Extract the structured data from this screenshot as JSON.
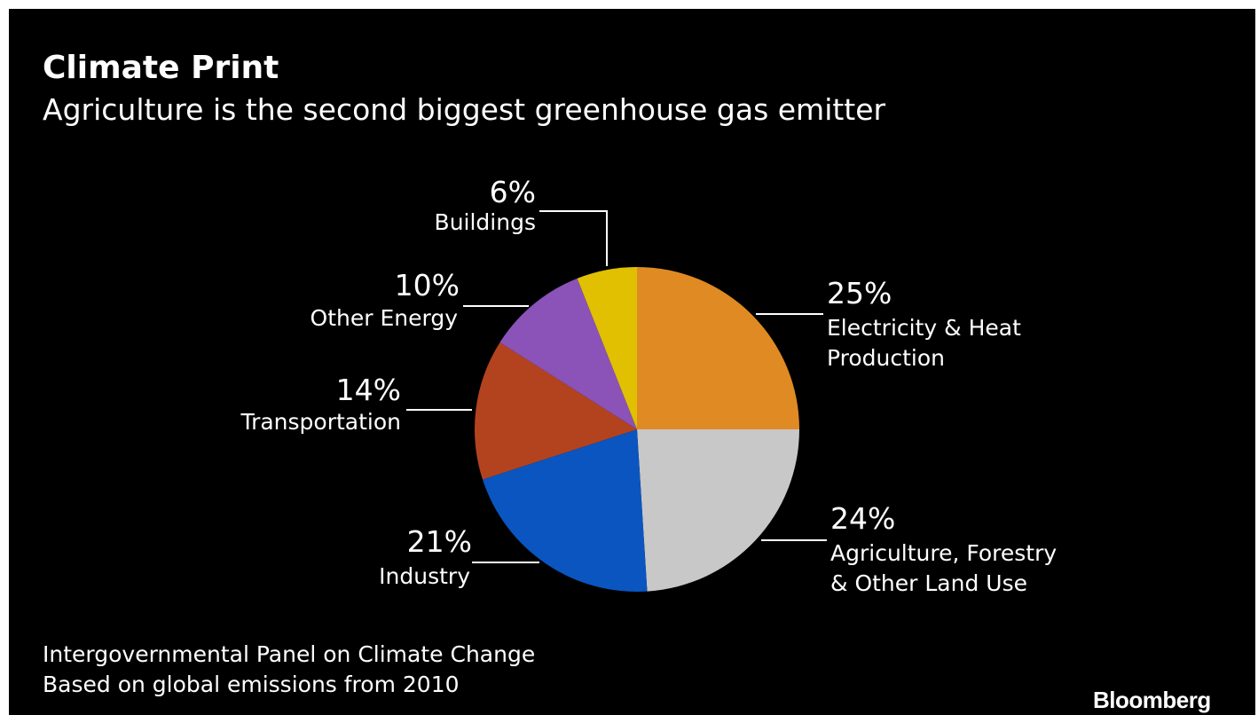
{
  "title": "Climate Print",
  "subtitle": "Agriculture is the second biggest greenhouse gas emitter",
  "source_lines": [
    "Intergovernmental Panel on Climate Change",
    "Based on global emissions from 2010"
  ],
  "brand": "Bloomberg",
  "colors": {
    "background": "#000000",
    "text": "#ffffff",
    "leader_lines": "#ffffff"
  },
  "chart_data": {
    "type": "pie",
    "title": "Climate Print",
    "subtitle": "Agriculture is the second biggest greenhouse gas emitter",
    "start": "12 o'clock",
    "direction": "clockwise",
    "unit": "%",
    "slices": [
      {
        "name": "Electricity & Heat Production",
        "label_lines": [
          "Electricity & Heat",
          "Production"
        ],
        "value": 25,
        "pct_label": "25%",
        "color": "#e08a24"
      },
      {
        "name": "Agriculture, Forestry & Other Land Use",
        "label_lines": [
          "Agriculture, Forestry",
          "& Other Land Use"
        ],
        "value": 24,
        "pct_label": "24%",
        "color": "#c8c8c8"
      },
      {
        "name": "Industry",
        "label_lines": [
          "Industry"
        ],
        "value": 21,
        "pct_label": "21%",
        "color": "#0a55c0"
      },
      {
        "name": "Transportation",
        "label_lines": [
          "Transportation"
        ],
        "value": 14,
        "pct_label": "14%",
        "color": "#b3431f"
      },
      {
        "name": "Other Energy",
        "label_lines": [
          "Other Energy"
        ],
        "value": 10,
        "pct_label": "10%",
        "color": "#8b52b8"
      },
      {
        "name": "Buildings",
        "label_lines": [
          "Buildings"
        ],
        "value": 6,
        "pct_label": "6%",
        "color": "#e0c000"
      }
    ]
  }
}
